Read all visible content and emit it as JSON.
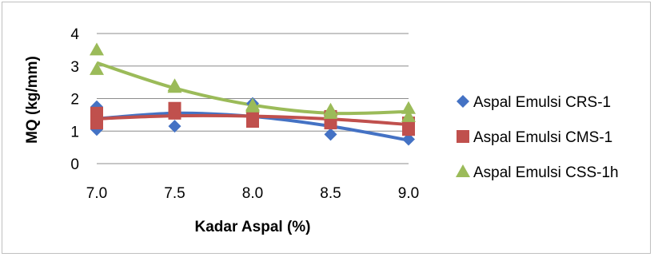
{
  "chart_data": {
    "type": "scatter",
    "title": "",
    "xlabel": "Kadar Aspal (%)",
    "ylabel": "MQ (kg/mm)",
    "x_ticks": [
      "7.0",
      "7.5",
      "8.0",
      "8.5",
      "9.0"
    ],
    "y_ticks": [
      "0",
      "1",
      "2",
      "3",
      "4"
    ],
    "xlim": [
      7.0,
      9.0
    ],
    "ylim": [
      0,
      4
    ],
    "grid": "horizontal",
    "legend_position": "right",
    "series": [
      {
        "name": "Aspal Emulsi CRS-1",
        "marker": "diamond",
        "color": "#4472C4",
        "points": [
          [
            7.0,
            1.75
          ],
          [
            7.0,
            1.05
          ],
          [
            7.5,
            1.55
          ],
          [
            7.5,
            1.15
          ],
          [
            8.0,
            1.85
          ],
          [
            8.0,
            1.45
          ],
          [
            8.5,
            1.35
          ],
          [
            8.5,
            0.9
          ],
          [
            9.0,
            0.95
          ],
          [
            9.0,
            0.75
          ]
        ],
        "trend": [
          [
            7.0,
            1.38
          ],
          [
            7.5,
            1.55
          ],
          [
            8.0,
            1.45
          ],
          [
            8.5,
            1.15
          ],
          [
            9.0,
            0.72
          ]
        ]
      },
      {
        "name": "Aspal Emulsi CMS-1",
        "marker": "square",
        "color": "#C0504D",
        "points": [
          [
            7.0,
            1.55
          ],
          [
            7.0,
            1.25
          ],
          [
            7.5,
            1.7
          ],
          [
            7.5,
            1.55
          ],
          [
            8.0,
            1.45
          ],
          [
            8.0,
            1.3
          ],
          [
            8.5,
            1.45
          ],
          [
            8.5,
            1.25
          ],
          [
            9.0,
            1.25
          ],
          [
            9.0,
            1.05
          ]
        ],
        "trend": [
          [
            7.0,
            1.38
          ],
          [
            7.5,
            1.47
          ],
          [
            8.0,
            1.46
          ],
          [
            8.5,
            1.37
          ],
          [
            9.0,
            1.2
          ]
        ]
      },
      {
        "name": "Aspal Emulsi CSS-1h",
        "marker": "triangle",
        "color": "#9BBB59",
        "points": [
          [
            7.0,
            3.5
          ],
          [
            7.0,
            2.9
          ],
          [
            7.5,
            2.4
          ],
          [
            7.5,
            2.35
          ],
          [
            8.0,
            1.8
          ],
          [
            8.0,
            1.75
          ],
          [
            8.5,
            1.65
          ],
          [
            8.5,
            1.55
          ],
          [
            9.0,
            1.7
          ],
          [
            9.0,
            1.45
          ]
        ],
        "trend": [
          [
            7.0,
            3.1
          ],
          [
            7.5,
            2.32
          ],
          [
            8.0,
            1.8
          ],
          [
            8.5,
            1.55
          ],
          [
            9.0,
            1.6
          ]
        ]
      }
    ]
  }
}
